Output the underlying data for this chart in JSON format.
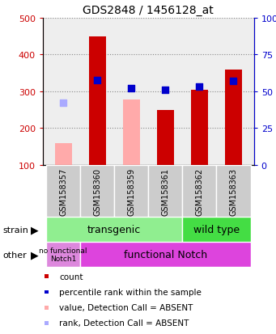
{
  "title": "GDS2848 / 1456128_at",
  "samples": [
    "GSM158357",
    "GSM158360",
    "GSM158359",
    "GSM158361",
    "GSM158362",
    "GSM158363"
  ],
  "x_positions": [
    0,
    1,
    2,
    3,
    4,
    5
  ],
  "count_values": [
    null,
    450,
    null,
    250,
    305,
    360
  ],
  "count_color": "#cc0000",
  "rank_values": [
    null,
    330,
    308,
    305,
    312,
    328
  ],
  "rank_color": "#0000cc",
  "absent_value_values": [
    160,
    null,
    278,
    null,
    null,
    null
  ],
  "absent_value_color": "#ffaaaa",
  "absent_rank_values": [
    270,
    null,
    null,
    null,
    null,
    null
  ],
  "absent_rank_color": "#aaaaff",
  "ylim": [
    100,
    500
  ],
  "y2lim": [
    0,
    100
  ],
  "yticks": [
    100,
    200,
    300,
    400,
    500
  ],
  "y2ticks": [
    0,
    25,
    50,
    75,
    100
  ],
  "y2tick_labels": [
    "0",
    "25",
    "50",
    "75",
    "100%"
  ],
  "bar_width": 0.5,
  "dot_size": 40,
  "transgenic_color": "#90EE90",
  "wildtype_color": "#44DD44",
  "no_functional_color": "#DD88DD",
  "functional_color": "#DD44DD",
  "xlabel_fontsize": 7,
  "title_fontsize": 10,
  "axis_left_color": "#cc0000",
  "axis_right_color": "#0000cc",
  "grid_color": "#888888",
  "plot_bg": "#eeeeee",
  "tick_bg": "#cccccc",
  "legend_items": [
    {
      "label": "count",
      "color": "#cc0000"
    },
    {
      "label": "percentile rank within the sample",
      "color": "#0000cc"
    },
    {
      "label": "value, Detection Call = ABSENT",
      "color": "#ffaaaa"
    },
    {
      "label": "rank, Detection Call = ABSENT",
      "color": "#aaaaff"
    }
  ]
}
